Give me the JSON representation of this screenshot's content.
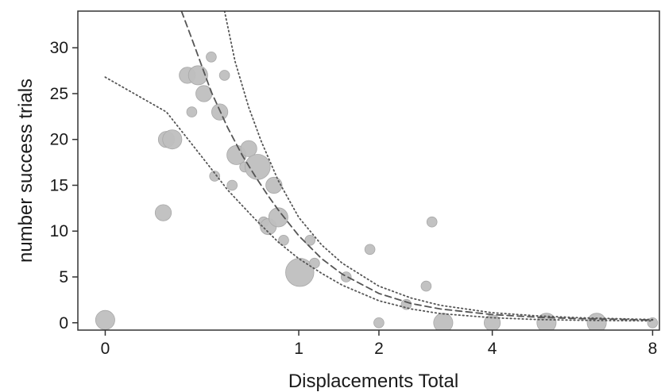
{
  "chart_data": {
    "type": "scatter",
    "title": "",
    "xlabel": "Displacements Total",
    "ylabel": "number success trials",
    "x_scale": "sqrt",
    "x_ticks": [
      0,
      1,
      2,
      4,
      8
    ],
    "x_tick_labels": [
      "0",
      "1",
      "2",
      "4",
      "8"
    ],
    "y_ticks": [
      0,
      5,
      10,
      15,
      20,
      25,
      30
    ],
    "y_tick_labels": [
      "0",
      "5",
      "10",
      "15",
      "20",
      "25",
      "30"
    ],
    "xlim": [
      -0.02,
      8.2
    ],
    "ylim": [
      -0.8,
      34
    ],
    "grid": false,
    "legend": "none",
    "colors": {
      "points": "#bfbfbf",
      "point_edge": "#a8a8a8",
      "fit_line": "#555555",
      "ci_line": "#555555",
      "frame": "#333333"
    },
    "points": [
      {
        "x": 0.0,
        "y": 0.3,
        "size": 4
      },
      {
        "x": 0.09,
        "y": 12,
        "size": 3
      },
      {
        "x": 0.1,
        "y": 20,
        "size": 3
      },
      {
        "x": 0.12,
        "y": 20,
        "size": 4
      },
      {
        "x": 0.18,
        "y": 27,
        "size": 3
      },
      {
        "x": 0.2,
        "y": 23,
        "size": 1
      },
      {
        "x": 0.23,
        "y": 27,
        "size": 4
      },
      {
        "x": 0.26,
        "y": 25,
        "size": 3
      },
      {
        "x": 0.3,
        "y": 29,
        "size": 1
      },
      {
        "x": 0.32,
        "y": 16,
        "size": 1
      },
      {
        "x": 0.35,
        "y": 23,
        "size": 3
      },
      {
        "x": 0.38,
        "y": 27,
        "size": 1
      },
      {
        "x": 0.43,
        "y": 15,
        "size": 1
      },
      {
        "x": 0.46,
        "y": 18.3,
        "size": 4
      },
      {
        "x": 0.52,
        "y": 17,
        "size": 1
      },
      {
        "x": 0.55,
        "y": 19,
        "size": 3
      },
      {
        "x": 0.62,
        "y": 17,
        "size": 6
      },
      {
        "x": 0.67,
        "y": 11,
        "size": 1
      },
      {
        "x": 0.71,
        "y": 10.5,
        "size": 3
      },
      {
        "x": 0.76,
        "y": 15,
        "size": 3
      },
      {
        "x": 0.8,
        "y": 11.5,
        "size": 4
      },
      {
        "x": 0.85,
        "y": 9,
        "size": 1
      },
      {
        "x": 1.01,
        "y": 5.5,
        "size": 7
      },
      {
        "x": 1.12,
        "y": 9,
        "size": 1
      },
      {
        "x": 1.17,
        "y": 6.5,
        "size": 1
      },
      {
        "x": 1.55,
        "y": 5,
        "size": 1
      },
      {
        "x": 1.87,
        "y": 8,
        "size": 1
      },
      {
        "x": 2.0,
        "y": 0,
        "size": 1
      },
      {
        "x": 2.42,
        "y": 2,
        "size": 1
      },
      {
        "x": 2.75,
        "y": 4,
        "size": 1
      },
      {
        "x": 2.85,
        "y": 11,
        "size": 1
      },
      {
        "x": 3.05,
        "y": 0,
        "size": 4
      },
      {
        "x": 4.0,
        "y": 0,
        "size": 3
      },
      {
        "x": 5.2,
        "y": 0,
        "size": 4
      },
      {
        "x": 6.45,
        "y": 0,
        "size": 4
      },
      {
        "x": 8.0,
        "y": 0,
        "size": 1
      }
    ],
    "series": [
      {
        "style": "dashed",
        "x": [
          0.155,
          0.2,
          0.3,
          0.4,
          0.5,
          0.6,
          0.7,
          0.8,
          1.0,
          1.25,
          1.5,
          2.0,
          2.5,
          3.0,
          4.0,
          5.0,
          6.0,
          7.0,
          8.0
        ],
        "y": [
          34,
          31,
          25.2,
          21.3,
          18.3,
          16.0,
          14.0,
          12.3,
          9.5,
          7.0,
          5.3,
          3.2,
          2.1,
          1.5,
          0.9,
          0.6,
          0.45,
          0.38,
          0.3
        ]
      },
      {
        "style": "dotted",
        "x": [
          0.38,
          0.45,
          0.55,
          0.65,
          0.8,
          1.0,
          1.25,
          1.5,
          2.0,
          2.5,
          3.0,
          4.0,
          5.0,
          6.0,
          7.0,
          8.0
        ],
        "y": [
          34,
          28.5,
          23.5,
          19.8,
          15.5,
          11.5,
          8.5,
          6.5,
          4.0,
          2.7,
          1.9,
          1.1,
          0.75,
          0.55,
          0.45,
          0.35
        ]
      },
      {
        "style": "dotted",
        "x": [
          0.0,
          0.1,
          0.2,
          0.3,
          0.4,
          0.5,
          0.6,
          0.8,
          1.0,
          1.25,
          1.5,
          2.0,
          2.5,
          3.0,
          4.0,
          5.0,
          6.0,
          7.0,
          8.0
        ],
        "y": [
          26.8,
          23,
          19.5,
          16.8,
          14.5,
          12.8,
          11.3,
          8.8,
          7.0,
          5.4,
          4.1,
          2.4,
          1.5,
          1.0,
          0.55,
          0.35,
          0.27,
          0.23,
          0.2
        ]
      }
    ]
  }
}
